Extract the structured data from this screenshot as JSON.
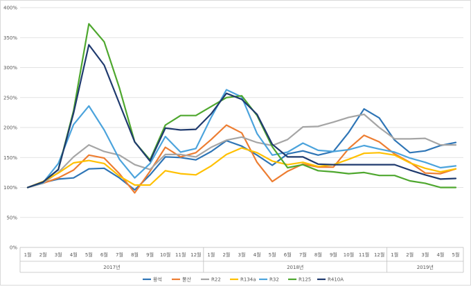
{
  "chart_data": {
    "type": "line",
    "title": "",
    "xlabel": "",
    "ylabel": "",
    "ylim": [
      0,
      400
    ],
    "y_ticks": [
      "0%",
      "50%",
      "100%",
      "150%",
      "200%",
      "250%",
      "300%",
      "350%",
      "400%"
    ],
    "grid": "horizontal",
    "legend_position": "bottom",
    "categories": [
      "1월",
      "2월",
      "3월",
      "4월",
      "5월",
      "6월",
      "7월",
      "8월",
      "9월",
      "10월",
      "11월",
      "12월",
      "1월",
      "2월",
      "3월",
      "4월",
      "5월",
      "6월",
      "7월",
      "8월",
      "9월",
      "10월",
      "11월",
      "12월",
      "1월",
      "2월",
      "3월",
      "4월",
      "5월"
    ],
    "year_groups": [
      {
        "label": "2017년",
        "count": 12
      },
      {
        "label": "2018년",
        "count": 12
      },
      {
        "label": "2019년",
        "count": 5
      }
    ],
    "series": [
      {
        "name": "황석",
        "color": "#2E75B6",
        "values": [
          100,
          108,
          114,
          116,
          131,
          132,
          116,
          96,
          121,
          151,
          150,
          146,
          160,
          178,
          169,
          154,
          137,
          156,
          161,
          154,
          160,
          192,
          231,
          216,
          179,
          158,
          161,
          170,
          175
        ]
      },
      {
        "name": "불산",
        "color": "#ED7D31",
        "values": [
          100,
          107,
          116,
          129,
          154,
          149,
          123,
          91,
          127,
          167,
          151,
          158,
          180,
          204,
          191,
          142,
          110,
          127,
          139,
          134,
          134,
          165,
          187,
          176,
          156,
          142,
          124,
          123,
          131
        ]
      },
      {
        "name": "R22",
        "color": "#A5A5A5",
        "values": [
          100,
          107,
          125,
          151,
          171,
          160,
          154,
          138,
          130,
          155,
          155,
          151,
          167,
          179,
          184,
          175,
          170,
          180,
          201,
          202,
          209,
          217,
          222,
          200,
          181,
          181,
          182,
          171,
          171
        ]
      },
      {
        "name": "R134a",
        "color": "#FFC000",
        "values": [
          100,
          110,
          124,
          141,
          145,
          140,
          119,
          104,
          104,
          128,
          123,
          121,
          136,
          155,
          166,
          158,
          144,
          138,
          142,
          135,
          138,
          147,
          157,
          158,
          154,
          141,
          132,
          126,
          131
        ]
      },
      {
        "name": "R32",
        "color": "#4BA3DC",
        "values": [
          100,
          108,
          140,
          205,
          236,
          196,
          147,
          116,
          140,
          185,
          159,
          165,
          217,
          263,
          251,
          190,
          154,
          159,
          174,
          162,
          160,
          163,
          170,
          164,
          159,
          149,
          142,
          133,
          136
        ]
      },
      {
        "name": "R125",
        "color": "#4EA72E",
        "values": [
          100,
          109,
          130,
          228,
          373,
          343,
          266,
          176,
          146,
          204,
          220,
          220,
          235,
          250,
          253,
          220,
          168,
          133,
          138,
          128,
          126,
          123,
          125,
          120,
          120,
          111,
          107,
          100,
          100
        ]
      },
      {
        "name": "R410A",
        "color": "#1F3A6E",
        "values": [
          100,
          109,
          130,
          224,
          338,
          304,
          240,
          176,
          144,
          199,
          196,
          197,
          223,
          257,
          247,
          222,
          172,
          151,
          151,
          139,
          138,
          138,
          138,
          138,
          138,
          129,
          121,
          114,
          115
        ]
      }
    ]
  }
}
